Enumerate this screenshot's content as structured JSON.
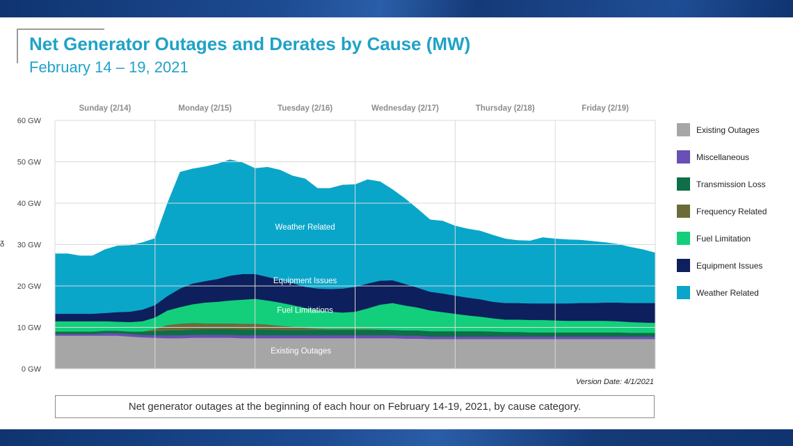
{
  "title": "Net Generator Outages and Derates by Cause (MW)",
  "subtitle": "February 14 – 19, 2021",
  "version": "Version Date: 4/1/2021",
  "caption": "Net generator outages at the beginning of each hour on February 14-19, 2021, by cause category.",
  "edge_mark": "ᵹ",
  "colors": {
    "existing": "#a6a6a6",
    "misc": "#6a4fb5",
    "transmission": "#0e6e47",
    "frequency": "#6b6b3a",
    "fuel": "#13cf7c",
    "equipment": "#0d1f5c",
    "weather": "#0aa6c9",
    "grid": "#d9d9d9",
    "title": "#1fa2c7"
  },
  "chart_data": {
    "type": "area",
    "stacked": true,
    "x": [
      0,
      3,
      6,
      9,
      12,
      15,
      18,
      21,
      24,
      27,
      30,
      33,
      36,
      39,
      42,
      45,
      48,
      51,
      54,
      57,
      60,
      63,
      66,
      69,
      72,
      75,
      78,
      81,
      84,
      87,
      90,
      93,
      96,
      99,
      102,
      105,
      108,
      111,
      114,
      117,
      120,
      123,
      126,
      129,
      132,
      135,
      138,
      141,
      144
    ],
    "xlim": [
      0,
      144
    ],
    "ylim": [
      0,
      60
    ],
    "yticks": [
      0,
      10,
      20,
      30,
      40,
      50,
      60
    ],
    "ytick_labels": [
      "0 GW",
      "10 GW",
      "20 GW",
      "30 GW",
      "40 GW",
      "50 GW",
      "60 GW"
    ],
    "day_labels": [
      "Sunday (2/14)",
      "Monday (2/15)",
      "Tuesday (2/16)",
      "Wednesday (2/17)",
      "Thursday (2/18)",
      "Friday (2/19)"
    ],
    "grid": true,
    "legend_position": "right",
    "series": [
      {
        "key": "existing",
        "name": "Existing Outages",
        "values": [
          8,
          8,
          8,
          8,
          8,
          8,
          7.8,
          7.6,
          7.5,
          7.4,
          7.4,
          7.5,
          7.5,
          7.5,
          7.5,
          7.4,
          7.4,
          7.4,
          7.4,
          7.4,
          7.4,
          7.4,
          7.4,
          7.4,
          7.4,
          7.4,
          7.4,
          7.4,
          7.3,
          7.3,
          7.2,
          7.2,
          7.2,
          7.2,
          7.2,
          7.2,
          7.2,
          7.2,
          7.2,
          7.2,
          7.2,
          7.2,
          7.2,
          7.2,
          7.2,
          7.2,
          7.2,
          7.2,
          7.2
        ]
      },
      {
        "key": "misc",
        "name": "Miscellaneous",
        "values": [
          0.4,
          0.4,
          0.4,
          0.4,
          0.6,
          0.6,
          0.6,
          0.6,
          0.6,
          0.7,
          0.7,
          0.7,
          0.7,
          0.7,
          0.7,
          0.7,
          0.7,
          0.7,
          0.7,
          0.7,
          0.7,
          0.7,
          0.7,
          0.7,
          0.7,
          0.7,
          0.7,
          0.7,
          0.7,
          0.7,
          0.6,
          0.6,
          0.6,
          0.6,
          0.6,
          0.6,
          0.6,
          0.6,
          0.6,
          0.6,
          0.6,
          0.6,
          0.6,
          0.6,
          0.6,
          0.6,
          0.6,
          0.6,
          0.6
        ]
      },
      {
        "key": "transmission",
        "name": "Transmission Loss",
        "values": [
          0.6,
          0.6,
          0.6,
          0.6,
          0.6,
          0.6,
          0.6,
          0.8,
          1.0,
          1.2,
          1.2,
          1.3,
          1.4,
          1.4,
          1.4,
          1.4,
          1.4,
          1.4,
          1.3,
          1.3,
          1.3,
          1.3,
          1.3,
          1.3,
          1.3,
          1.3,
          1.3,
          1.3,
          1.3,
          1.3,
          1.3,
          1.3,
          1.3,
          1.3,
          1.3,
          1.2,
          1.1,
          1.1,
          1.0,
          1.0,
          1.0,
          1.0,
          1.0,
          1.0,
          1.0,
          1.0,
          0.9,
          0.9,
          0.9
        ]
      },
      {
        "key": "frequency",
        "name": "Frequency Related",
        "values": [
          0,
          0,
          0,
          0,
          0,
          0,
          0,
          0,
          0.5,
          1.3,
          1.6,
          1.6,
          1.4,
          1.4,
          1.4,
          1.4,
          1.4,
          1.2,
          1.0,
          0.8,
          0.5,
          0.3,
          0.2,
          0.2,
          0.2,
          0.2,
          0.1,
          0,
          0,
          0,
          0,
          0,
          0,
          0,
          0,
          0,
          0,
          0,
          0,
          0,
          0,
          0,
          0,
          0,
          0,
          0,
          0,
          0,
          0
        ]
      },
      {
        "key": "fuel",
        "name": "Fuel Limitation",
        "values": [
          2.5,
          2.5,
          2.5,
          2.5,
          2.3,
          2.2,
          2.3,
          2.5,
          2.8,
          3.5,
          4.0,
          4.5,
          5.0,
          5.2,
          5.5,
          5.8,
          6.0,
          5.8,
          5.6,
          5.2,
          4.8,
          4.5,
          4.2,
          4.0,
          4.2,
          5.0,
          6.0,
          6.5,
          6.0,
          5.5,
          5.0,
          4.6,
          4.2,
          3.8,
          3.5,
          3.2,
          3.0,
          3.0,
          3.0,
          3.0,
          2.9,
          2.8,
          2.8,
          2.8,
          2.8,
          2.7,
          2.6,
          2.5,
          2.4
        ]
      },
      {
        "key": "equipment",
        "name": "Equipment Issues",
        "values": [
          1.8,
          1.8,
          1.8,
          1.8,
          2.0,
          2.3,
          2.5,
          2.8,
          3.0,
          3.5,
          4.5,
          5.0,
          5.2,
          5.5,
          6.0,
          6.2,
          6.0,
          5.7,
          5.5,
          5.3,
          5.1,
          5.2,
          5.5,
          5.8,
          6.0,
          6.0,
          5.8,
          5.5,
          5.2,
          4.8,
          4.5,
          4.5,
          4.4,
          4.3,
          4.2,
          4.0,
          4.0,
          4.0,
          4.0,
          4.0,
          4.1,
          4.2,
          4.3,
          4.3,
          4.4,
          4.5,
          4.6,
          4.7,
          4.8
        ]
      },
      {
        "key": "weather",
        "name": "Weather Related",
        "values": [
          14.5,
          14.5,
          14.0,
          14.0,
          15.3,
          16.0,
          16.0,
          16.2,
          16.1,
          22.4,
          28.1,
          27.7,
          27.6,
          27.8,
          28.0,
          26.9,
          25.5,
          26.5,
          26.5,
          25.9,
          26.1,
          24.2,
          24.3,
          25.0,
          24.7,
          25.1,
          23.9,
          21.9,
          20.6,
          19.0,
          17.4,
          17.5,
          16.8,
          16.6,
          16.5,
          16.1,
          15.5,
          15.1,
          15.1,
          15.9,
          15.6,
          15.4,
          15.2,
          14.9,
          14.5,
          14.1,
          13.5,
          12.9,
          12.1
        ]
      }
    ],
    "annotations": [
      {
        "text": "Weather Related",
        "x": 60,
        "y": 33.6
      },
      {
        "text": "Equipment Issues",
        "x": 60,
        "y": 20.7
      },
      {
        "text": "Fuel Limitations",
        "x": 60,
        "y": 13.5
      },
      {
        "text": "Existing Outages",
        "x": 59,
        "y": 3.7
      }
    ]
  }
}
